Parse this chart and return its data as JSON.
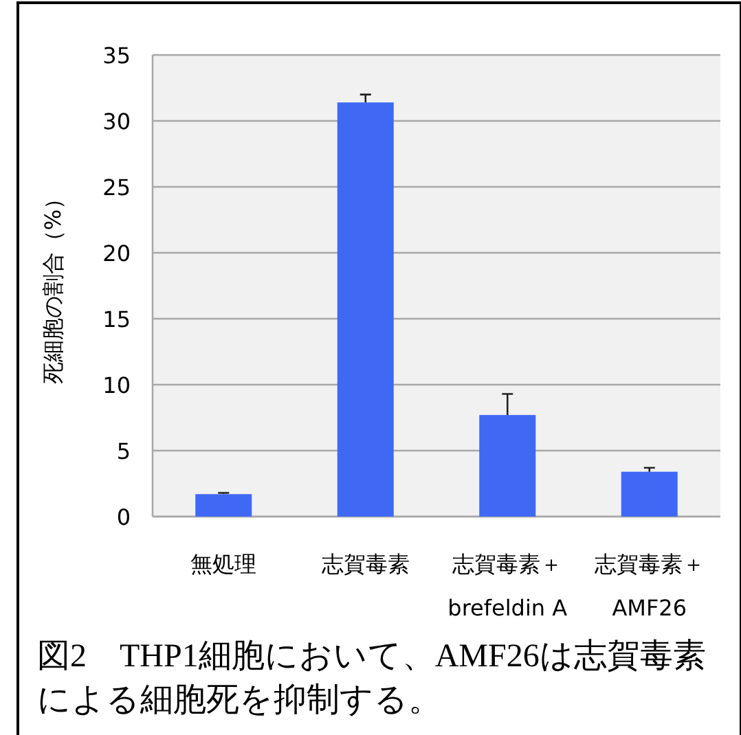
{
  "chart_data": {
    "type": "bar",
    "title": "図2　THP1細胞において、AMF26は志賀毒素による細胞死を抑制する。",
    "ylabel": "死細胞の割合（%）",
    "categories": [
      "無処理",
      "志賀毒素",
      "志賀毒素＋\nbrefeldin A",
      "志賀毒素＋\nAMF26"
    ],
    "values": [
      1.7,
      31.4,
      7.7,
      3.4
    ],
    "errors": [
      [
        1.7,
        1.8
      ],
      [
        31.4,
        32.0
      ],
      [
        7.7,
        9.3
      ],
      [
        3.4,
        3.7
      ]
    ],
    "color": "#3f69f5",
    "ylim": [
      0,
      35
    ],
    "yticks": [
      0,
      5,
      10,
      15,
      20,
      25,
      30,
      35
    ],
    "grid": "y"
  }
}
